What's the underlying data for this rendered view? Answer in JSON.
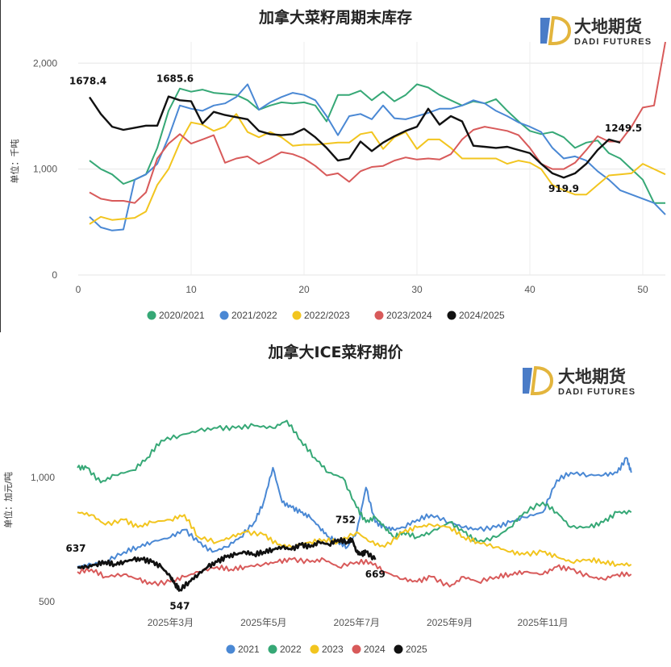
{
  "logo": {
    "name": "大地期货",
    "sub": "DADI FUTURES",
    "colors": {
      "blue": "#4a7cc7",
      "gold": "#e3b53d"
    }
  },
  "chart_data": [
    {
      "type": "line",
      "title": "加拿大菜籽周期末库存",
      "ylabel": "单位：千吨",
      "xlabel": "",
      "xlim": [
        0,
        52
      ],
      "ylim": [
        0,
        2200
      ],
      "x_ticks": [
        0,
        10,
        20,
        30,
        40,
        50
      ],
      "y_ticks": [
        0,
        1000,
        2000
      ],
      "y_tick_labels": [
        "0",
        "1,000",
        "2,000"
      ],
      "grid": "horizontal",
      "legend_position": "bottom",
      "series": [
        {
          "name": "2020/2021",
          "color": "#36a876",
          "x_start": 1,
          "values": [
            1080,
            1000,
            950,
            860,
            900,
            950,
            1200,
            1550,
            1760,
            1730,
            1750,
            1720,
            1710,
            1700,
            1650,
            1560,
            1600,
            1630,
            1620,
            1630,
            1600,
            1450,
            1700,
            1700,
            1740,
            1650,
            1730,
            1640,
            1700,
            1800,
            1770,
            1700,
            1650,
            1600,
            1640,
            1620,
            1660,
            1550,
            1450,
            1360,
            1330,
            1350,
            1300,
            1200,
            1250,
            1270,
            1150,
            1100,
            1000,
            900,
            680,
            680
          ]
        },
        {
          "name": "2021/2022",
          "color": "#4a88d4",
          "x_start": 1,
          "values": [
            550,
            450,
            420,
            430,
            900,
            950,
            1050,
            1300,
            1600,
            1570,
            1550,
            1600,
            1620,
            1680,
            1800,
            1560,
            1630,
            1680,
            1720,
            1700,
            1650,
            1500,
            1320,
            1500,
            1520,
            1470,
            1600,
            1480,
            1470,
            1500,
            1530,
            1570,
            1570,
            1600,
            1650,
            1620,
            1550,
            1500,
            1440,
            1400,
            1350,
            1200,
            1100,
            1120,
            1080,
            980,
            900,
            800,
            760,
            720,
            680,
            570
          ]
        },
        {
          "name": "2022/2023",
          "color": "#f2c51f",
          "x_start": 1,
          "values": [
            480,
            550,
            520,
            530,
            540,
            600,
            850,
            1000,
            1250,
            1440,
            1420,
            1360,
            1400,
            1520,
            1350,
            1300,
            1350,
            1300,
            1220,
            1230,
            1230,
            1240,
            1250,
            1250,
            1330,
            1350,
            1190,
            1300,
            1350,
            1190,
            1280,
            1280,
            1200,
            1100,
            1100,
            1100,
            1100,
            1050,
            1080,
            1060,
            1000,
            850,
            800,
            760,
            760,
            850,
            940,
            950,
            960,
            1050,
            1000,
            950
          ]
        },
        {
          "name": "2023/2024",
          "color": "#d85a5a",
          "x_start": 1,
          "values": [
            780,
            720,
            700,
            700,
            680,
            780,
            1100,
            1240,
            1330,
            1240,
            1280,
            1320,
            1060,
            1100,
            1120,
            1050,
            1100,
            1160,
            1140,
            1100,
            1030,
            940,
            960,
            880,
            980,
            1020,
            1030,
            1080,
            1110,
            1090,
            1100,
            1090,
            1140,
            1280,
            1370,
            1400,
            1380,
            1360,
            1320,
            1200,
            1050,
            1000,
            1000,
            1060,
            1180,
            1310,
            1260,
            1260,
            1400,
            1580,
            1600,
            2200
          ]
        },
        {
          "name": "2024/2025",
          "color": "#111111",
          "x_start": 1,
          "values": [
            1678.4,
            1520,
            1400,
            1370,
            1390,
            1410,
            1410,
            1685.6,
            1650,
            1640,
            1430,
            1540,
            1510,
            1490,
            1470,
            1360,
            1330,
            1320,
            1330,
            1380,
            1300,
            1200,
            1080,
            1100,
            1260,
            1170,
            1250,
            1310,
            1360,
            1400,
            1570,
            1420,
            1500,
            1450,
            1220,
            1210,
            1200,
            1210,
            1180,
            1150,
            1050,
            960,
            919.9,
            960,
            1050,
            1180,
            1280,
            1249.5
          ]
        }
      ],
      "annotations": [
        {
          "x": 1,
          "y": 1678.4,
          "text": "1678.4"
        },
        {
          "x": 8,
          "y": 1685.6,
          "text": "1685.6"
        },
        {
          "x": 43,
          "y": 919.9,
          "text": "919.9"
        },
        {
          "x": 48,
          "y": 1249.5,
          "text": "1249.5"
        }
      ]
    },
    {
      "type": "line",
      "title": "加拿大ICE菜籽期价",
      "ylabel": "单位：加元/吨",
      "xlabel": "",
      "x_tick_labels": [
        "2025年3月",
        "2025年5月",
        "2025年7月",
        "2025年9月",
        "2025年11月"
      ],
      "x_tick_months": [
        3,
        5,
        7,
        9,
        11
      ],
      "xlim_months": [
        1,
        13.2
      ],
      "ylim": [
        480,
        1300
      ],
      "y_ticks": [
        500,
        1000
      ],
      "y_tick_labels": [
        "500",
        "1,000"
      ],
      "grid": "none",
      "legend_position": "bottom",
      "series": [
        {
          "name": "2021",
          "color": "#4a88d4",
          "months": [
            1.0,
            1.3,
            1.6,
            2.0,
            2.3,
            2.6,
            3.0,
            3.3,
            3.6,
            3.9,
            4.2,
            4.5,
            4.8,
            5.0,
            5.2,
            5.4,
            5.6,
            5.8,
            6.0,
            6.2,
            6.4,
            6.6,
            6.8,
            7.0,
            7.2,
            7.4,
            7.6,
            7.8,
            8.0,
            8.3,
            8.6,
            9.0,
            9.3,
            9.6,
            10.0,
            10.3,
            10.6,
            11.0,
            11.3,
            11.6,
            12.0,
            12.3,
            12.6,
            12.8,
            12.9
          ],
          "values": [
            640,
            650,
            660,
            700,
            720,
            740,
            760,
            790,
            740,
            700,
            720,
            760,
            820,
            900,
            1040,
            900,
            880,
            860,
            840,
            800,
            760,
            740,
            720,
            780,
            960,
            820,
            800,
            790,
            800,
            830,
            850,
            820,
            800,
            790,
            800,
            820,
            840,
            860,
            990,
            1020,
            1010,
            1010,
            1020,
            1080,
            1020
          ]
        },
        {
          "name": "2022",
          "color": "#36a876",
          "months": [
            1.0,
            1.2,
            1.5,
            1.8,
            2.2,
            2.5,
            2.8,
            3.2,
            3.6,
            4.0,
            4.4,
            4.8,
            5.2,
            5.5,
            5.8,
            6.1,
            6.4,
            6.7,
            7.0,
            7.2,
            7.4,
            7.6,
            7.8,
            8.0,
            8.3,
            8.6,
            9.0,
            9.3,
            9.6,
            10.0,
            10.3,
            10.6,
            11.0,
            11.3,
            11.6,
            12.0,
            12.3,
            12.6,
            12.9
          ],
          "values": [
            1040,
            1040,
            980,
            1010,
            1030,
            1080,
            1150,
            1170,
            1190,
            1200,
            1200,
            1210,
            1200,
            1230,
            1150,
            1080,
            1020,
            1000,
            880,
            820,
            840,
            800,
            760,
            780,
            760,
            780,
            820,
            780,
            740,
            760,
            800,
            860,
            900,
            860,
            800,
            800,
            820,
            860,
            860
          ]
        },
        {
          "name": "2023",
          "color": "#f2c51f",
          "months": [
            1.0,
            1.3,
            1.6,
            2.0,
            2.3,
            2.6,
            3.0,
            3.3,
            3.6,
            4.0,
            4.3,
            4.6,
            5.0,
            5.3,
            5.6,
            6.0,
            6.3,
            6.6,
            7.0,
            7.3,
            7.6,
            8.0,
            8.3,
            8.6,
            9.0,
            9.3,
            9.6,
            10.0,
            10.3,
            10.6,
            11.0,
            11.3,
            11.6,
            12.0,
            12.3,
            12.6,
            12.9
          ],
          "values": [
            860,
            850,
            810,
            830,
            800,
            820,
            830,
            850,
            760,
            740,
            760,
            780,
            770,
            730,
            720,
            740,
            750,
            740,
            780,
            740,
            720,
            780,
            800,
            810,
            800,
            760,
            740,
            720,
            700,
            690,
            700,
            680,
            660,
            670,
            660,
            650,
            650
          ]
        },
        {
          "name": "2024",
          "color": "#d85a5a",
          "months": [
            1.0,
            1.3,
            1.6,
            2.0,
            2.3,
            2.6,
            3.0,
            3.3,
            3.6,
            4.0,
            4.3,
            4.6,
            5.0,
            5.3,
            5.6,
            6.0,
            6.3,
            6.6,
            7.0,
            7.3,
            7.6,
            8.0,
            8.3,
            8.6,
            9.0,
            9.3,
            9.6,
            10.0,
            10.3,
            10.6,
            11.0,
            11.3,
            11.6,
            12.0,
            12.3,
            12.6,
            12.9
          ],
          "values": [
            620,
            630,
            600,
            610,
            590,
            570,
            580,
            600,
            620,
            640,
            630,
            640,
            650,
            660,
            670,
            660,
            670,
            640,
            660,
            660,
            620,
            590,
            580,
            600,
            560,
            600,
            580,
            600,
            610,
            620,
            610,
            640,
            630,
            600,
            590,
            610,
            610
          ]
        },
        {
          "name": "2025",
          "color": "#111111",
          "months": [
            1.0,
            1.2,
            1.4,
            1.6,
            1.8,
            2.0,
            2.2,
            2.4,
            2.6,
            2.8,
            3.0,
            3.1,
            3.2,
            3.4,
            3.6,
            3.8,
            4.0,
            4.2,
            4.4,
            4.6,
            4.8,
            5.0,
            5.2,
            5.4,
            5.6,
            5.8,
            6.0,
            6.2,
            6.4,
            6.6,
            6.8,
            6.9,
            7.0,
            7.1,
            7.2,
            7.4
          ],
          "values": [
            637,
            640,
            650,
            660,
            650,
            660,
            670,
            670,
            660,
            640,
            600,
            570,
            547,
            580,
            610,
            640,
            660,
            680,
            690,
            700,
            690,
            700,
            710,
            720,
            710,
            730,
            720,
            740,
            730,
            750,
            740,
            752,
            700,
            690,
            700,
            669
          ]
        }
      ],
      "annotations": [
        {
          "series": "2025",
          "month": 1.0,
          "value": 637,
          "text": "637"
        },
        {
          "series": "2025",
          "month": 3.2,
          "value": 547,
          "text": "547"
        },
        {
          "series": "2025",
          "month": 6.9,
          "value": 752,
          "text": "752"
        },
        {
          "series": "2025",
          "month": 7.4,
          "value": 669,
          "text": "669"
        }
      ]
    }
  ]
}
